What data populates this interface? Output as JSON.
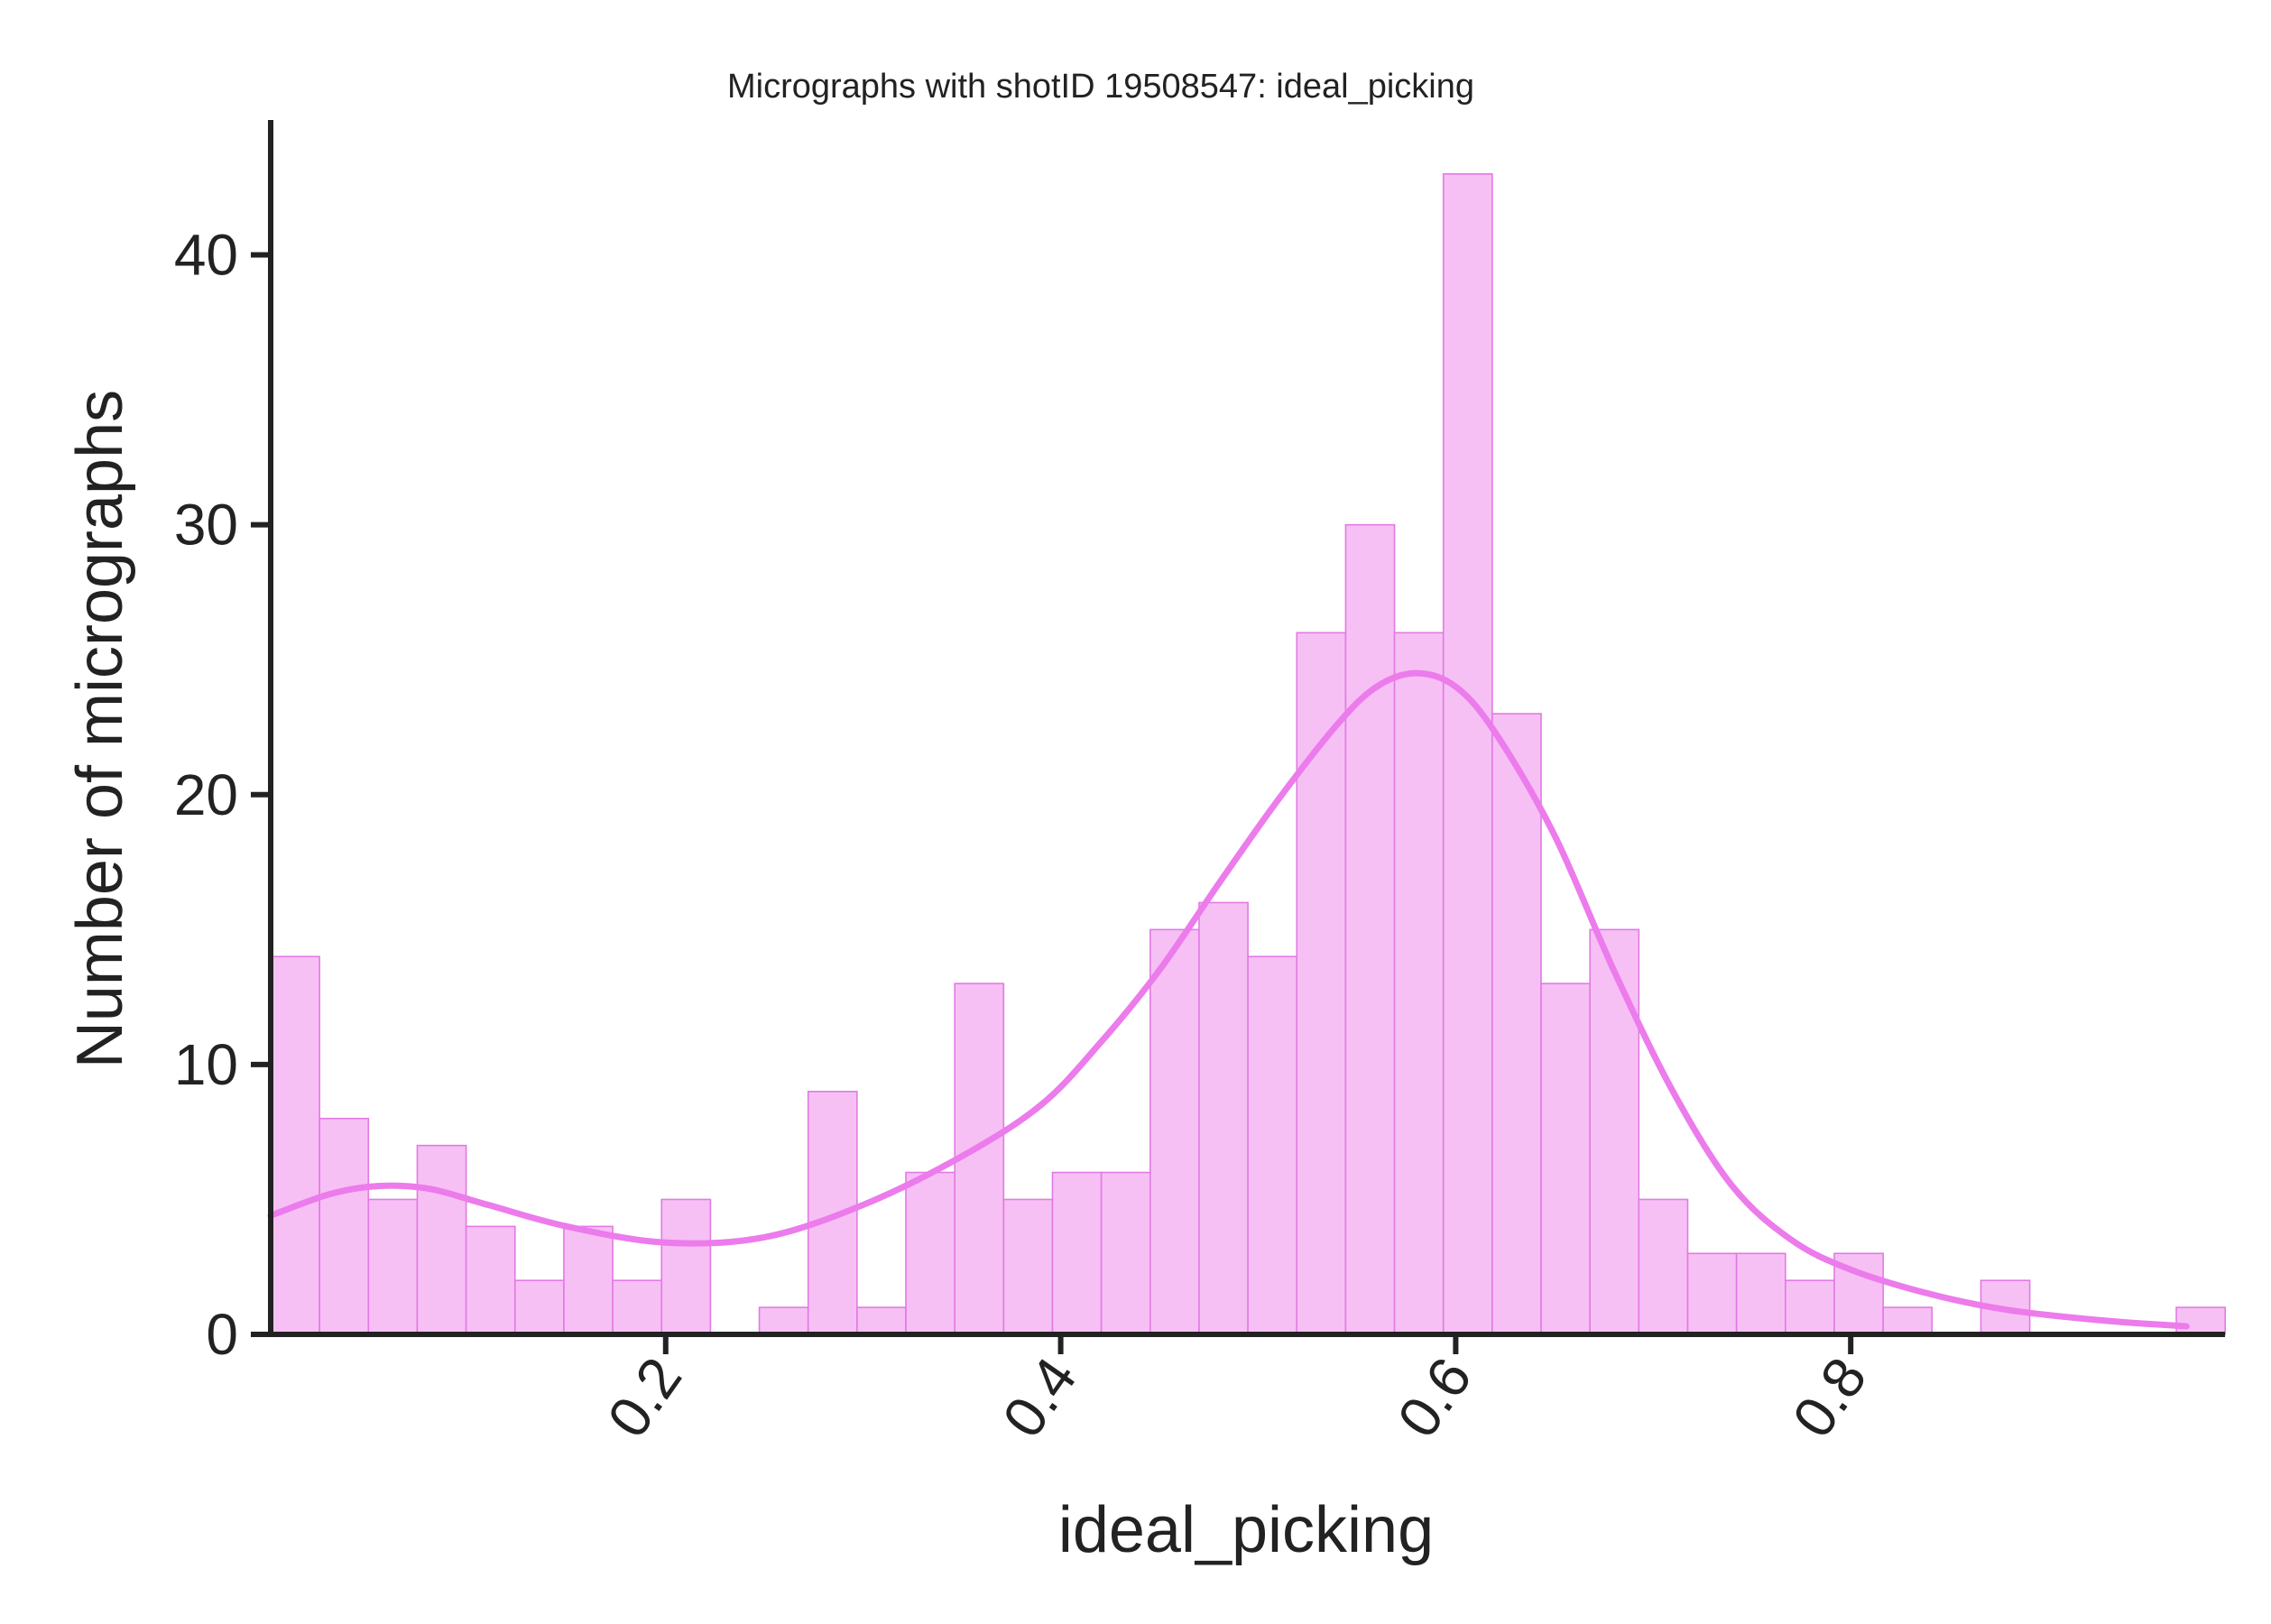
{
  "chart_data": {
    "type": "bar",
    "subtype": "histogram-with-kde",
    "title": "Micrographs with shotID 19508547: ideal_picking",
    "xlabel": "ideal_picking",
    "ylabel": "Number of micrographs",
    "xlim": [
      0.0,
      0.9895
    ],
    "ylim": [
      0,
      45
    ],
    "x_ticks": [
      "0.2",
      "0.4",
      "0.6",
      "0.8"
    ],
    "x_tick_values": [
      0.2,
      0.4,
      0.6,
      0.8
    ],
    "y_ticks": [
      "0",
      "10",
      "20",
      "30",
      "40"
    ],
    "y_tick_values": [
      0,
      10,
      20,
      30,
      40
    ],
    "x_tick_rotation": 55,
    "bins": {
      "start": 0.0,
      "width": 0.02474,
      "counts": [
        14,
        8,
        5,
        7,
        4,
        2,
        4,
        2,
        5,
        0,
        1,
        9,
        1,
        6,
        13,
        5,
        6,
        6,
        15,
        16,
        14,
        26,
        30,
        26,
        43,
        23,
        13,
        15,
        5,
        3,
        3,
        2,
        3,
        1,
        0,
        2,
        0,
        0,
        0,
        1
      ]
    },
    "kde": {
      "x": [
        0.0,
        0.03,
        0.055,
        0.08,
        0.11,
        0.15,
        0.2,
        0.25,
        0.3,
        0.35,
        0.39,
        0.42,
        0.45,
        0.48,
        0.51,
        0.54,
        0.56,
        0.58,
        0.6,
        0.62,
        0.65,
        0.68,
        0.71,
        0.74,
        0.77,
        0.8,
        0.84,
        0.88,
        0.93,
        0.97
      ],
      "y": [
        4.4,
        5.2,
        5.5,
        5.4,
        4.8,
        4.0,
        3.4,
        3.6,
        4.8,
        6.6,
        8.5,
        10.8,
        13.5,
        16.7,
        19.8,
        22.6,
        24.0,
        24.5,
        24.0,
        22.3,
        18.5,
        13.5,
        9.0,
        5.5,
        3.5,
        2.4,
        1.5,
        0.9,
        0.5,
        0.3
      ]
    },
    "colors": {
      "bar_fill": "#f6c0f4",
      "bar_edge": "#e27ae3",
      "kde_line": "#ec7bec",
      "axis": "#222222"
    },
    "grid": false,
    "legend": "none"
  }
}
